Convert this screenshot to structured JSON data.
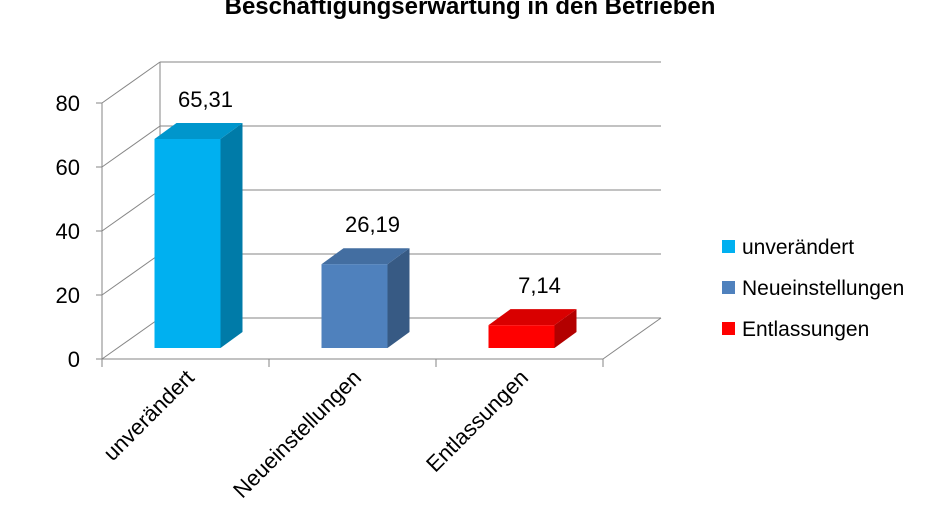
{
  "chart_data": {
    "type": "bar",
    "title": "Beschäftigungserwartung in den Betrieben",
    "categories": [
      "unverändert",
      "Neueinstellungen",
      "Entlassungen"
    ],
    "values": [
      65.31,
      26.19,
      7.14
    ],
    "data_labels": [
      "65,31",
      "26,19",
      "7,14"
    ],
    "colors": [
      "#00B0F0",
      "#4F81BD",
      "#FF0000"
    ],
    "ylim": [
      0,
      80
    ],
    "yticks": [
      "0",
      "20",
      "40",
      "60",
      "80"
    ],
    "grid": true,
    "3d": true,
    "legend": {
      "position": "right",
      "entries": [
        "unverändert",
        "Neueinstellungen",
        "Entlassungen"
      ]
    }
  }
}
